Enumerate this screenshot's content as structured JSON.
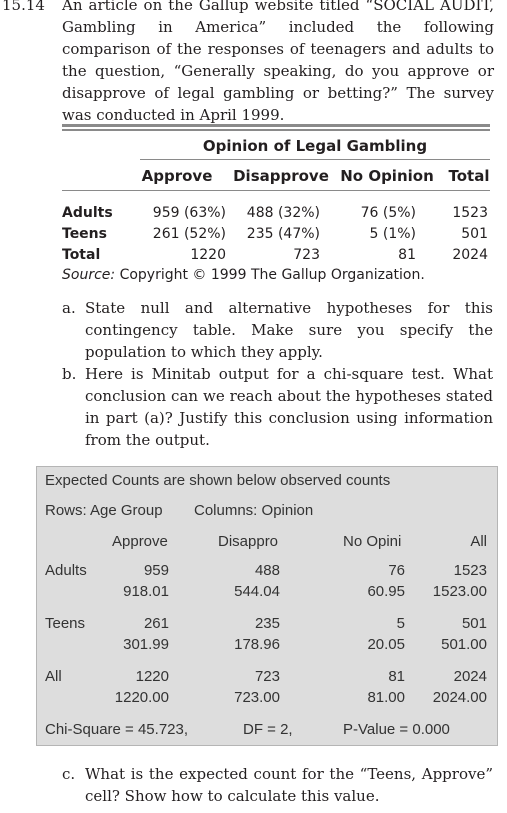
{
  "problem": {
    "number": "15.14",
    "text": "An article on the Gallup website titled “SOCIAL AUDIT, Gambling in America” included the following comparison of the responses of teenagers and adults to the question, “Generally speaking, do you approve or disapprove of legal gambling or betting?” The survey was conducted in April 1999."
  },
  "table": {
    "title": "Opinion of Legal Gambling",
    "header": [
      "Approve",
      "Disapprove",
      "No Opinion",
      "Total"
    ],
    "rows": [
      [
        "Adults",
        "959 (63%)",
        "488 (32%)",
        "76 (5%)",
        "1523"
      ],
      [
        "Teens",
        "261 (52%)",
        "235 (47%)",
        "5 (1%)",
        "501"
      ],
      [
        "Total",
        "1220",
        "723",
        "81",
        "2024"
      ]
    ],
    "source_label": "Source:",
    "source_text": "Copyright © 1999 The Gallup Organization."
  },
  "questions": [
    {
      "label": "a.",
      "text": "State null and alternative hypotheses for this contingency table. Make sure you specify the population to which they apply."
    },
    {
      "label": "b.",
      "text": "Here is Minitab output for a chi-square test. What conclusion can we reach about the hypotheses stated in part (a)? Justify this conclusion using information from the output."
    },
    {
      "label": "c.",
      "text": "What is the expected count for the “Teens, Approve” cell? Show how to calculate this value."
    }
  ],
  "minitab": {
    "note": "Expected Counts are shown below observed counts",
    "rows_label": "Rows: Age Group",
    "columns_label": "Columns: Opinion",
    "header": [
      "Approve",
      "Disappro",
      "No Opini",
      "All"
    ],
    "rows": [
      {
        "label": "Adults",
        "observed": [
          "959",
          "488",
          "76",
          "1523"
        ],
        "expected": [
          "918.01",
          "544.04",
          "60.95",
          "1523.00"
        ]
      },
      {
        "label": "Teens",
        "observed": [
          "261",
          "235",
          "5",
          "501"
        ],
        "expected": [
          "301.99",
          "178.96",
          "20.05",
          "501.00"
        ]
      },
      {
        "label": "All",
        "observed": [
          "1220",
          "723",
          "81",
          "2024"
        ],
        "expected": [
          "1220.00",
          "723.00",
          "81.00",
          "2024.00"
        ]
      }
    ],
    "stats": [
      "Chi-Square = 45.723,",
      "DF = 2,",
      "P-Value = 0.000"
    ]
  }
}
